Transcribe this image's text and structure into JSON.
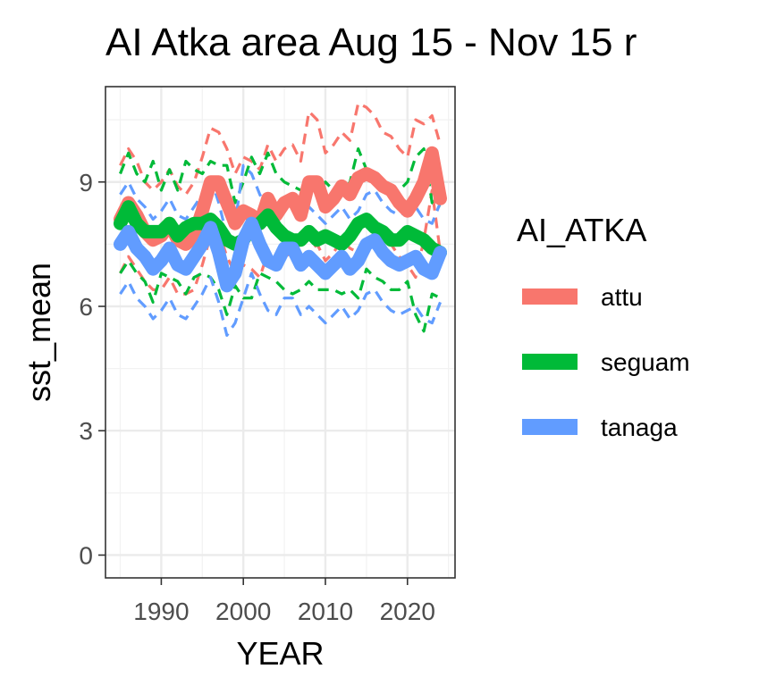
{
  "chart_data": {
    "type": "line",
    "title": "AI Atka area Aug 15 - Nov 15 r",
    "xlabel": "YEAR",
    "ylabel": "sst_mean",
    "xlim": [
      1983.2,
      2025.8
    ],
    "ylim": [
      -0.55,
      11.3
    ],
    "x_ticks": [
      1990,
      2000,
      2010,
      2020
    ],
    "y_ticks": [
      0,
      3,
      6,
      9
    ],
    "grid": true,
    "legend": {
      "title": "AI_ATKA",
      "position": "right"
    },
    "x": [
      1985,
      1986,
      1987,
      1988,
      1989,
      1990,
      1991,
      1992,
      1993,
      1994,
      1995,
      1996,
      1997,
      1998,
      1999,
      2000,
      2001,
      2002,
      2003,
      2004,
      2005,
      2006,
      2007,
      2008,
      2009,
      2010,
      2011,
      2012,
      2013,
      2014,
      2015,
      2016,
      2017,
      2018,
      2019,
      2020,
      2021,
      2022,
      2023,
      2024
    ],
    "series": [
      {
        "name": "attu",
        "color": "#F8766D",
        "mean": [
          8.1,
          8.5,
          8.2,
          7.8,
          7.6,
          7.7,
          8.0,
          7.6,
          7.5,
          7.7,
          8.3,
          9.0,
          9.0,
          8.5,
          8.0,
          8.3,
          8.2,
          8.0,
          8.6,
          8.2,
          8.5,
          8.6,
          8.2,
          9.0,
          9.0,
          8.4,
          8.6,
          8.9,
          8.7,
          9.1,
          9.2,
          9.1,
          8.9,
          8.8,
          8.5,
          8.3,
          8.6,
          9.0,
          9.7,
          8.6
        ],
        "upper": [
          9.4,
          9.8,
          9.5,
          9.0,
          8.8,
          9.0,
          9.3,
          8.9,
          8.7,
          9.0,
          9.6,
          10.3,
          10.2,
          9.8,
          9.2,
          9.6,
          9.5,
          9.3,
          9.9,
          9.5,
          9.8,
          9.9,
          9.5,
          10.7,
          10.5,
          9.7,
          9.9,
          10.2,
          10.0,
          10.9,
          10.8,
          10.6,
          10.2,
          10.1,
          9.8,
          9.6,
          10.5,
          10.4,
          10.6,
          9.9
        ],
        "lower": [
          6.8,
          7.2,
          6.9,
          6.6,
          6.4,
          6.4,
          6.7,
          6.3,
          6.3,
          6.4,
          7.0,
          7.7,
          7.8,
          7.2,
          6.8,
          7.0,
          6.9,
          6.7,
          7.3,
          6.9,
          7.2,
          7.3,
          6.9,
          7.3,
          7.5,
          7.1,
          7.3,
          7.6,
          7.4,
          7.3,
          7.6,
          7.6,
          7.6,
          7.5,
          7.2,
          7.0,
          6.7,
          7.6,
          8.8,
          7.3
        ]
      },
      {
        "name": "seguam",
        "color": "#00BA38",
        "mean": [
          8.0,
          8.4,
          8.0,
          7.8,
          7.8,
          7.8,
          8.0,
          7.7,
          7.9,
          8.0,
          8.0,
          8.1,
          7.9,
          7.6,
          7.5,
          7.6,
          7.9,
          8.0,
          8.2,
          7.9,
          7.7,
          7.6,
          7.6,
          7.8,
          7.6,
          7.7,
          7.6,
          7.5,
          7.7,
          8.0,
          8.1,
          7.9,
          7.8,
          7.6,
          7.6,
          7.8,
          7.7,
          7.6,
          7.4,
          7.3
        ],
        "upper": [
          9.2,
          9.7,
          9.2,
          9.0,
          9.5,
          8.8,
          9.3,
          8.8,
          9.5,
          9.3,
          9.2,
          9.5,
          9.4,
          9.4,
          8.5,
          9.0,
          9.6,
          9.2,
          9.7,
          9.2,
          9.0,
          8.9,
          8.8,
          9.0,
          8.8,
          9.0,
          8.8,
          8.7,
          9.0,
          9.8,
          9.3,
          9.1,
          9.0,
          8.8,
          8.8,
          9.0,
          9.6,
          9.8,
          8.5,
          8.4
        ],
        "lower": [
          6.8,
          7.1,
          6.8,
          6.6,
          6.1,
          6.8,
          6.7,
          6.6,
          6.3,
          6.7,
          6.8,
          6.7,
          6.4,
          5.8,
          6.5,
          6.2,
          6.2,
          6.8,
          6.7,
          6.6,
          6.4,
          6.3,
          6.4,
          6.6,
          6.4,
          6.4,
          6.4,
          6.3,
          6.4,
          6.2,
          6.9,
          6.7,
          6.6,
          6.4,
          6.4,
          6.6,
          5.8,
          5.4,
          6.3,
          6.2
        ]
      },
      {
        "name": "tanaga",
        "color": "#619CFF",
        "mean": [
          7.5,
          7.8,
          7.4,
          7.2,
          6.9,
          7.1,
          7.4,
          7.0,
          6.9,
          7.2,
          7.5,
          7.9,
          7.3,
          6.5,
          6.8,
          7.6,
          8.0,
          7.5,
          7.1,
          7.0,
          7.4,
          7.4,
          7.0,
          7.2,
          7.0,
          6.8,
          7.0,
          7.2,
          6.9,
          7.1,
          7.5,
          7.6,
          7.3,
          7.1,
          7.0,
          7.1,
          7.2,
          6.9,
          6.8,
          7.3
        ],
        "upper": [
          8.7,
          9.0,
          8.6,
          8.4,
          8.1,
          8.3,
          8.6,
          8.2,
          8.1,
          8.4,
          8.7,
          9.1,
          8.5,
          7.7,
          8.0,
          9.4,
          9.2,
          8.7,
          8.3,
          8.2,
          8.6,
          8.6,
          8.2,
          8.4,
          8.2,
          8.0,
          8.2,
          8.4,
          8.1,
          8.3,
          8.7,
          8.8,
          8.5,
          8.3,
          8.2,
          8.3,
          8.4,
          8.1,
          8.0,
          8.5
        ],
        "lower": [
          6.3,
          6.6,
          6.2,
          6.0,
          5.7,
          5.9,
          6.2,
          5.8,
          5.7,
          6.0,
          6.3,
          6.7,
          6.1,
          5.3,
          5.6,
          6.2,
          6.8,
          6.3,
          5.9,
          5.8,
          6.2,
          6.2,
          5.8,
          6.0,
          5.8,
          5.6,
          5.8,
          6.0,
          5.7,
          5.9,
          6.3,
          6.4,
          6.1,
          5.9,
          5.8,
          5.9,
          6.0,
          5.7,
          5.6,
          6.1
        ]
      }
    ]
  }
}
